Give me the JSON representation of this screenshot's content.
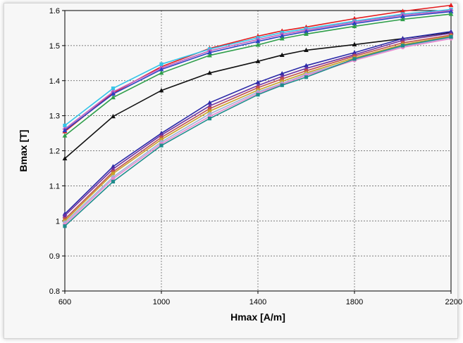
{
  "chart_data": {
    "type": "line",
    "xlabel": "Hmax [A/m]",
    "ylabel": "Bmax [T]",
    "xlim": [
      600,
      2200
    ],
    "ylim": [
      0.8,
      1.6
    ],
    "x_ticks": [
      "600",
      "1000",
      "1400",
      "1800",
      "2200"
    ],
    "y_ticks": [
      "0.8",
      "0.9",
      "1",
      "1.1",
      "1.2",
      "1.3",
      "1.4",
      "1.5",
      "1.6"
    ],
    "grid": true,
    "series": [
      {
        "color": "#e31a1c",
        "marker": "triangle",
        "x": [
          600,
          800,
          1000,
          1200,
          1400,
          1500,
          1600,
          1800,
          2000,
          2200
        ],
        "y": [
          1.255,
          1.365,
          1.44,
          1.492,
          1.527,
          1.542,
          1.553,
          1.577,
          1.598,
          1.615
        ]
      },
      {
        "color": "#33c4e8",
        "marker": "square",
        "x": [
          600,
          800,
          1000,
          1200,
          1400,
          1500,
          1600,
          1800,
          2000,
          2200
        ],
        "y": [
          1.272,
          1.378,
          1.447,
          1.49,
          1.522,
          1.537,
          1.548,
          1.57,
          1.59,
          1.603
        ]
      },
      {
        "color": "#c060c0",
        "marker": "diamond",
        "x": [
          600,
          800,
          1000,
          1200,
          1400,
          1500,
          1600,
          1800,
          2000,
          2200
        ],
        "y": [
          1.262,
          1.368,
          1.436,
          1.485,
          1.517,
          1.532,
          1.544,
          1.567,
          1.587,
          1.6
        ]
      },
      {
        "color": "#2b3fc4",
        "marker": "triangle",
        "x": [
          600,
          800,
          1000,
          1200,
          1400,
          1500,
          1600,
          1800,
          2000,
          2200
        ],
        "y": [
          1.258,
          1.362,
          1.432,
          1.48,
          1.512,
          1.527,
          1.54,
          1.563,
          1.583,
          1.597
        ]
      },
      {
        "color": "#2e9e4a",
        "marker": "triangle",
        "x": [
          600,
          800,
          1000,
          1200,
          1400,
          1500,
          1600,
          1800,
          2000,
          2200
        ],
        "y": [
          1.243,
          1.352,
          1.422,
          1.472,
          1.502,
          1.52,
          1.533,
          1.555,
          1.575,
          1.59
        ]
      },
      {
        "color": "#111111",
        "marker": "triangle",
        "x": [
          600,
          800,
          1000,
          1200,
          1400,
          1500,
          1600,
          1800,
          2000,
          2200
        ],
        "y": [
          1.178,
          1.298,
          1.372,
          1.422,
          1.455,
          1.473,
          1.487,
          1.503,
          1.52,
          1.538
        ]
      },
      {
        "color": "#2a2aa8",
        "marker": "triangle",
        "x": [
          600,
          800,
          1000,
          1200,
          1400,
          1500,
          1600,
          1800,
          2000,
          2200
        ],
        "y": [
          1.02,
          1.155,
          1.25,
          1.337,
          1.395,
          1.42,
          1.443,
          1.48,
          1.52,
          1.54
        ]
      },
      {
        "color": "#7030a0",
        "marker": "triangle",
        "x": [
          600,
          800,
          1000,
          1200,
          1400,
          1500,
          1600,
          1800,
          2000,
          2200
        ],
        "y": [
          1.015,
          1.148,
          1.245,
          1.328,
          1.386,
          1.412,
          1.435,
          1.474,
          1.515,
          1.535
        ]
      },
      {
        "color": "#c0504d",
        "marker": "square",
        "x": [
          600,
          800,
          1000,
          1200,
          1400,
          1500,
          1600,
          1800,
          2000,
          2200
        ],
        "y": [
          1.005,
          1.14,
          1.238,
          1.32,
          1.38,
          1.405,
          1.428,
          1.47,
          1.508,
          1.53
        ]
      },
      {
        "color": "#c9a227",
        "marker": "circle",
        "x": [
          600,
          800,
          1000,
          1200,
          1400,
          1500,
          1600,
          1800,
          2000,
          2200
        ],
        "y": [
          1.0,
          1.135,
          1.232,
          1.313,
          1.373,
          1.398,
          1.422,
          1.465,
          1.503,
          1.527
        ]
      },
      {
        "color": "#9fb3d6",
        "marker": "diamond",
        "x": [
          600,
          800,
          1000,
          1200,
          1400,
          1500,
          1600,
          1800,
          2000,
          2200
        ],
        "y": [
          0.995,
          1.125,
          1.225,
          1.305,
          1.368,
          1.392,
          1.418,
          1.46,
          1.498,
          1.522
        ]
      },
      {
        "color": "#e88ad0",
        "marker": "circle",
        "x": [
          600,
          800,
          1000,
          1200,
          1400,
          1500,
          1600,
          1800,
          2000,
          2200
        ],
        "y": [
          0.99,
          1.12,
          1.22,
          1.298,
          1.364,
          1.39,
          1.415,
          1.458,
          1.495,
          1.52
        ]
      },
      {
        "color": "#1f8c8c",
        "marker": "square",
        "x": [
          600,
          800,
          1000,
          1200,
          1400,
          1500,
          1600,
          1800,
          2000,
          2200
        ],
        "y": [
          0.985,
          1.112,
          1.215,
          1.292,
          1.36,
          1.387,
          1.41,
          1.462,
          1.5,
          1.525
        ]
      }
    ]
  }
}
